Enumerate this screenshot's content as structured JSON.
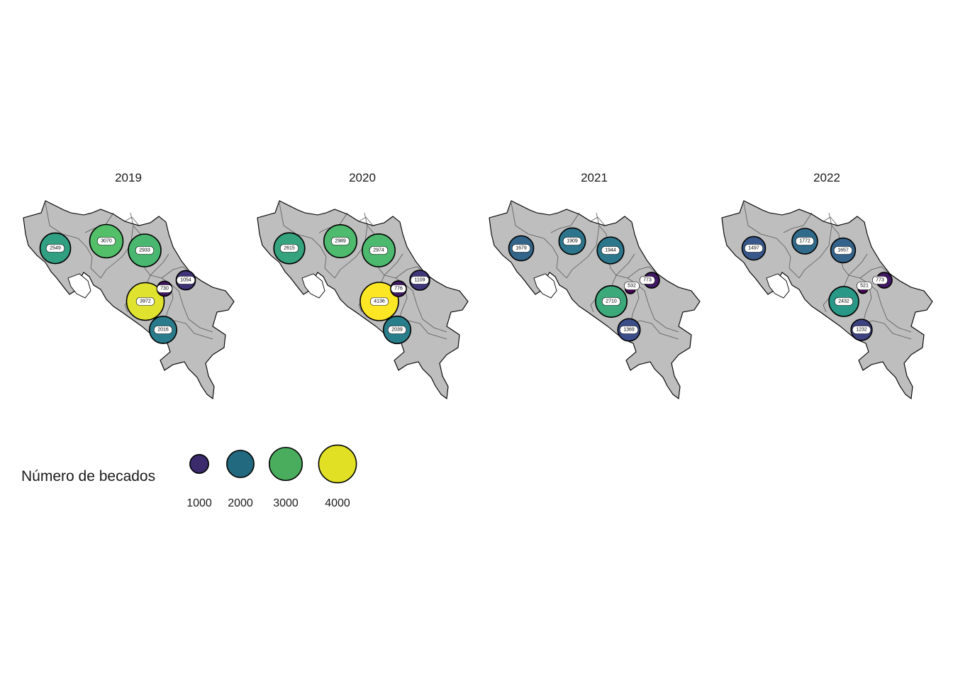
{
  "chart_data": {
    "type": "map",
    "title": "",
    "scale": {
      "min": 500,
      "max": 4136
    },
    "legend": {
      "title": "Número de becados",
      "breaks": [
        {
          "value": 1000,
          "label": "1000",
          "color": "#3b2a6c"
        },
        {
          "value": 2000,
          "label": "2000",
          "color": "#22697f"
        },
        {
          "value": 3000,
          "label": "3000",
          "color": "#4aad5e"
        },
        {
          "value": 4000,
          "label": "4000",
          "color": "#e1e025"
        }
      ]
    },
    "colors": {
      "land": "#bebebe",
      "border": "#000000",
      "ramp": [
        "#440154",
        "#3b528b",
        "#21918c",
        "#5ec962",
        "#fde725"
      ]
    },
    "panels": [
      {
        "year": "2019",
        "provinces": [
          {
            "name": "Guanacaste",
            "value": 2549
          },
          {
            "name": "Alajuela",
            "value": 3070
          },
          {
            "name": "Heredia",
            "value": 2933
          },
          {
            "name": "Limón",
            "value": 1054
          },
          {
            "name": "Cartago",
            "value": 730
          },
          {
            "name": "San José",
            "value": 3972
          },
          {
            "name": "Puntarenas",
            "value": 2016
          }
        ]
      },
      {
        "year": "2020",
        "provinces": [
          {
            "name": "Guanacaste",
            "value": 2615
          },
          {
            "name": "Alajuela",
            "value": 2989
          },
          {
            "name": "Heredia",
            "value": 2974
          },
          {
            "name": "Limón",
            "value": 1109
          },
          {
            "name": "Cartago",
            "value": 776
          },
          {
            "name": "San José",
            "value": 4136
          },
          {
            "name": "Puntarenas",
            "value": 2039
          }
        ]
      },
      {
        "year": "2021",
        "provinces": [
          {
            "name": "Guanacaste",
            "value": 1679
          },
          {
            "name": "Alajuela",
            "value": 1909
          },
          {
            "name": "Heredia",
            "value": 1944
          },
          {
            "name": "Limón",
            "value": 773
          },
          {
            "name": "Cartago",
            "value": 532
          },
          {
            "name": "San José",
            "value": 2710
          },
          {
            "name": "Puntarenas",
            "value": 1369
          }
        ]
      },
      {
        "year": "2022",
        "provinces": [
          {
            "name": "Guanacaste",
            "value": 1497
          },
          {
            "name": "Alajuela",
            "value": 1772
          },
          {
            "name": "Heredia",
            "value": 1657
          },
          {
            "name": "Limón",
            "value": 773
          },
          {
            "name": "Cartago",
            "value": 521
          },
          {
            "name": "San José",
            "value": 2432
          },
          {
            "name": "Puntarenas",
            "value": 1232
          }
        ]
      }
    ]
  }
}
